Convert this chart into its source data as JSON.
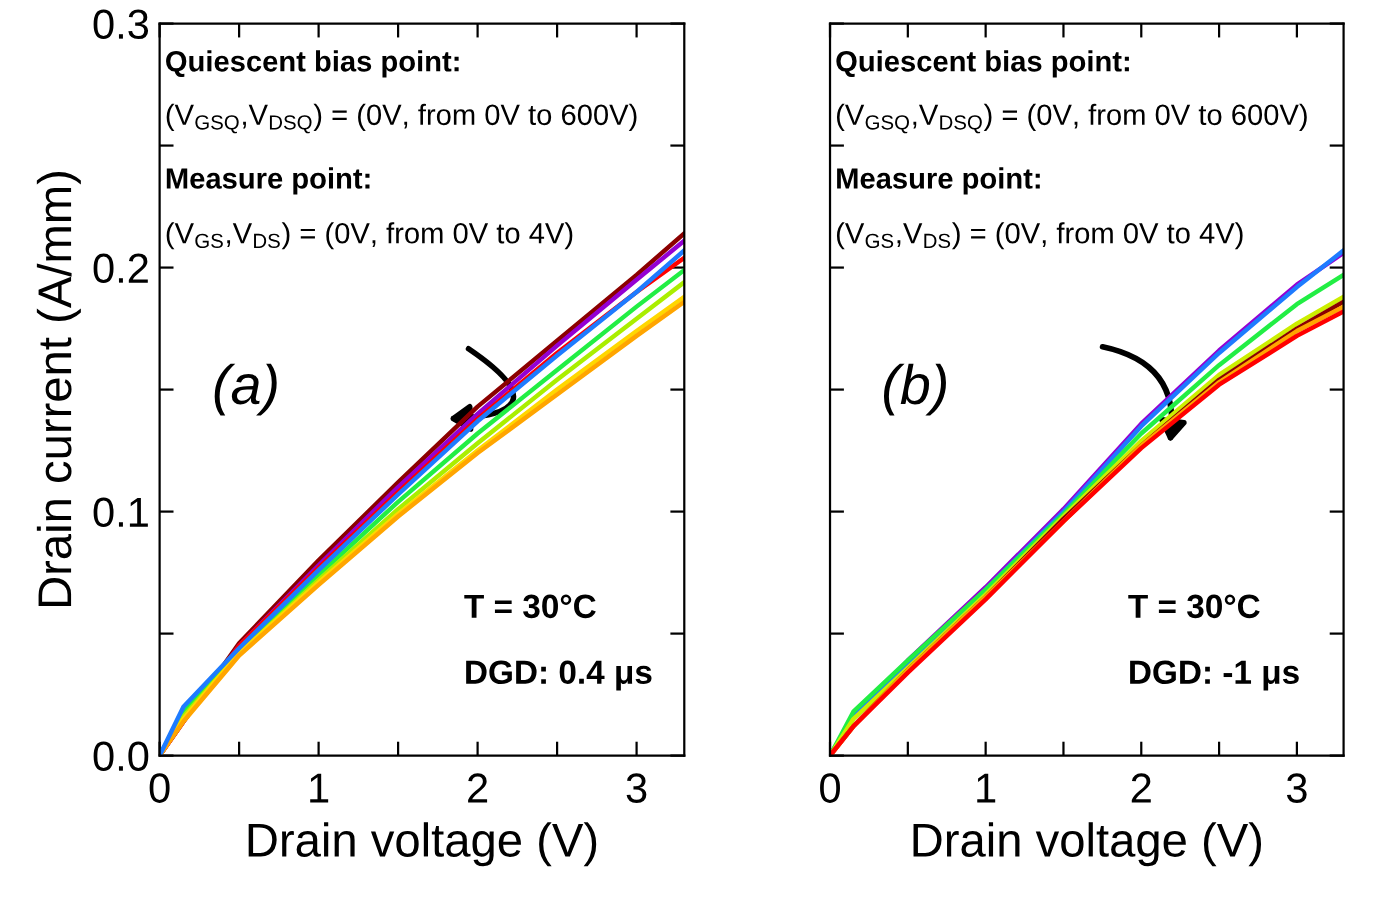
{
  "chart_data": [
    {
      "type": "line",
      "xlabel": "Drain voltage (V)",
      "ylabel": "Drain current (A/mm)",
      "xlim": [
        0,
        3.3
      ],
      "ylim": [
        0,
        0.3
      ],
      "xticks": [
        0,
        {
          "value": 0.5,
          "label": null
        },
        1,
        {
          "value": 1.5,
          "label": null
        },
        2,
        {
          "value": 2.5,
          "label": null
        },
        3
      ],
      "yticks": [
        {
          "value": 0,
          "label": "0.0"
        },
        {
          "value": 0.05,
          "label": null
        },
        0.1,
        {
          "value": 0.15,
          "label": null
        },
        0.2,
        {
          "value": 0.25,
          "label": null
        },
        0.3
      ],
      "x": [
        0,
        0.15,
        0.5,
        1,
        1.5,
        2,
        2.5,
        3,
        3.3
      ],
      "grid": false,
      "legend": false,
      "line_style": "solid",
      "marker": "none",
      "annotations": [
        "Quiescent bias point:",
        "(V$_{GSQ}$,V$_{DSQ}$) = (0V, from 0V to 600V)",
        "Measure point:",
        "(V$_{GS}$,V$_{DS}$) = (0V, from 0V to 4V)",
        "(a)",
        "T = 30°C",
        "DGD: 0.4 μs"
      ],
      "series": [
        {
          "color": "#8b0000",
          "values": [
            0,
            0.014,
            0.046,
            0.08,
            0.112,
            0.143,
            0.17,
            0.197,
            0.214
          ]
        },
        {
          "color": "#9400d3",
          "values": [
            0,
            0.014,
            0.045,
            0.078,
            0.11,
            0.14,
            0.168,
            0.195,
            0.211
          ]
        },
        {
          "color": "#ff0000",
          "values": [
            0,
            0.014,
            0.045,
            0.077,
            0.108,
            0.138,
            0.165,
            0.19,
            0.204
          ]
        },
        {
          "color": "#22ee44",
          "values": [
            0,
            0.018,
            0.043,
            0.074,
            0.104,
            0.132,
            0.158,
            0.184,
            0.199
          ]
        },
        {
          "color": "#aaee00",
          "values": [
            0,
            0.016,
            0.042,
            0.072,
            0.101,
            0.128,
            0.154,
            0.179,
            0.194
          ]
        },
        {
          "color": "#ffd700",
          "values": [
            0,
            0.015,
            0.042,
            0.071,
            0.099,
            0.125,
            0.15,
            0.174,
            0.188
          ]
        },
        {
          "color": "#ffa500",
          "values": [
            0,
            0.014,
            0.041,
            0.07,
            0.098,
            0.124,
            0.148,
            0.172,
            0.186
          ]
        },
        {
          "color": "#1e7bff",
          "values": [
            0,
            0.02,
            0.044,
            0.076,
            0.107,
            0.137,
            0.164,
            0.19,
            0.207
          ]
        }
      ]
    },
    {
      "type": "line",
      "xlabel": "Drain voltage (V)",
      "xlim": [
        0,
        3.3
      ],
      "ylim": [
        0,
        0.3
      ],
      "tick_labels": "x",
      "xticks": [
        0,
        {
          "value": 0.5,
          "label": null
        },
        1,
        {
          "value": 1.5,
          "label": null
        },
        2,
        {
          "value": 2.5,
          "label": null
        },
        3
      ],
      "yticks": [
        {
          "value": 0,
          "label": null
        },
        {
          "value": 0.05,
          "label": null
        },
        {
          "value": 0.1,
          "label": null
        },
        {
          "value": 0.15,
          "label": null
        },
        {
          "value": 0.2,
          "label": null
        },
        {
          "value": 0.25,
          "label": null
        },
        {
          "value": 0.3,
          "label": null
        }
      ],
      "x": [
        0,
        0.15,
        0.5,
        1,
        1.5,
        2,
        2.5,
        3,
        3.3
      ],
      "grid": false,
      "legend": false,
      "line_style": "solid",
      "marker": "none",
      "annotations": [
        "Quiescent bias point:",
        "(V$_{GSQ}$,V$_{DSQ}$) = (0V, from 0V to 600V)",
        "Measure point:",
        "(V$_{GS}$,V$_{DS}$) = (0V, from 0V to 4V)",
        "(b)",
        "T = 30°C",
        "DGD: -1 μs"
      ],
      "series": [
        {
          "color": "#9400d3",
          "values": [
            0,
            0.016,
            0.039,
            0.069,
            0.101,
            0.136,
            0.166,
            0.193,
            0.206
          ]
        },
        {
          "color": "#1e7bff",
          "values": [
            0,
            0.016,
            0.038,
            0.068,
            0.1,
            0.135,
            0.165,
            0.192,
            0.207
          ]
        },
        {
          "color": "#22ee44",
          "values": [
            0,
            0.018,
            0.039,
            0.068,
            0.099,
            0.132,
            0.16,
            0.185,
            0.197
          ]
        },
        {
          "color": "#ccee00",
          "values": [
            0,
            0.015,
            0.036,
            0.066,
            0.098,
            0.129,
            0.156,
            0.177,
            0.188
          ]
        },
        {
          "color": "#8b0000",
          "values": [
            0,
            0.012,
            0.035,
            0.065,
            0.097,
            0.127,
            0.154,
            0.175,
            0.186
          ]
        },
        {
          "color": "#ffa500",
          "values": [
            0,
            0.012,
            0.035,
            0.065,
            0.096,
            0.127,
            0.153,
            0.174,
            0.184
          ]
        },
        {
          "color": "#ff0000",
          "values": [
            0,
            0.012,
            0.034,
            0.064,
            0.096,
            0.126,
            0.152,
            0.172,
            0.182
          ]
        }
      ]
    }
  ]
}
